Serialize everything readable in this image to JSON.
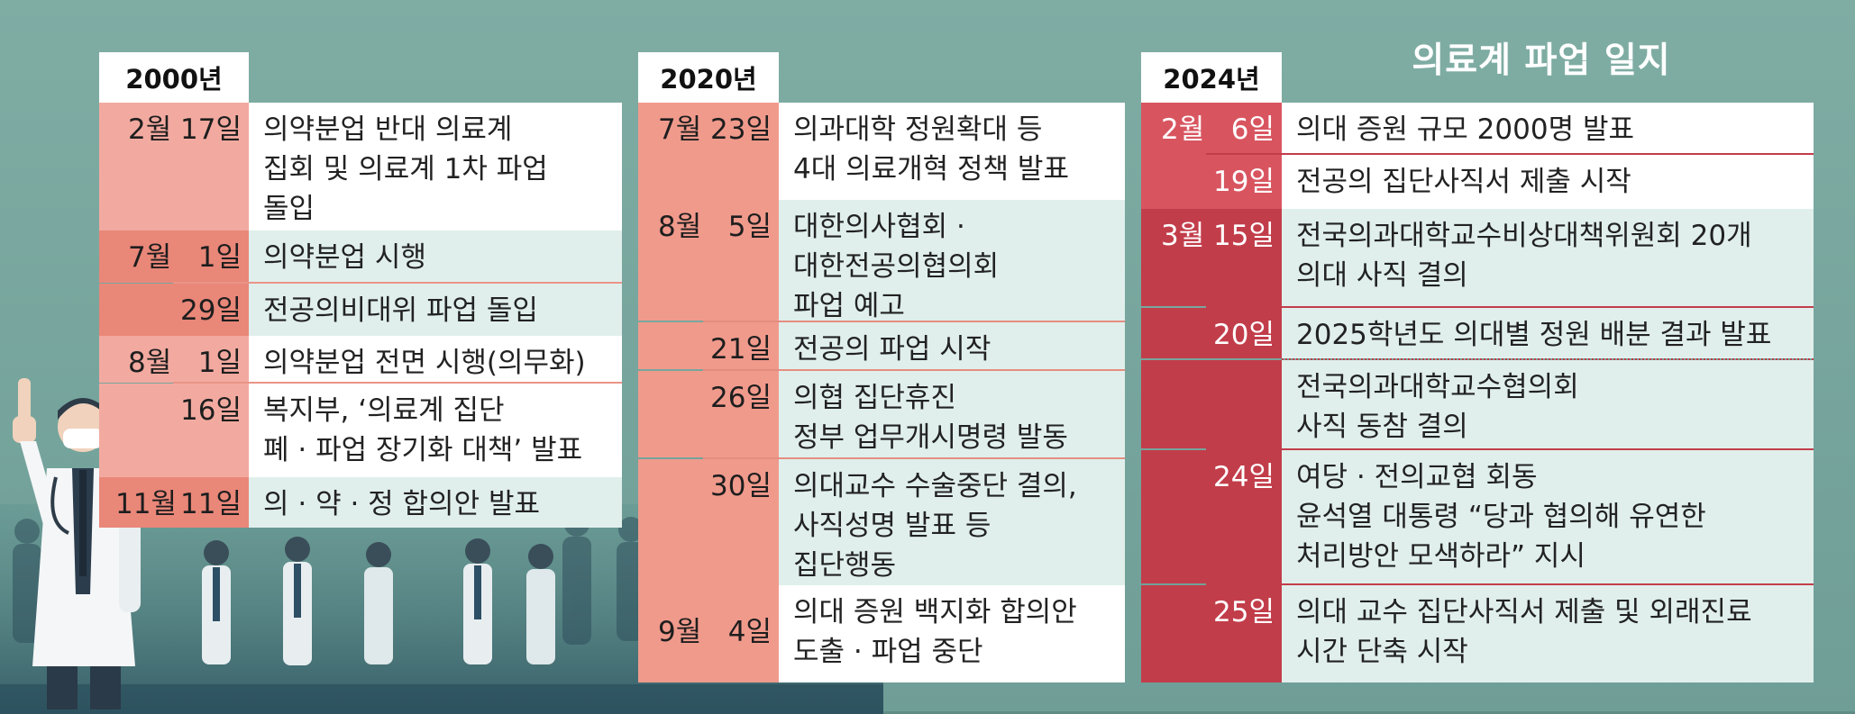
{
  "title": "의료계 파업 일지",
  "colors": {
    "background": "#86b1a8",
    "col1_date": "#f2aaa0",
    "col1_date_dark": "#e98779",
    "col2_date": "#f09a8c",
    "col3_date": "#c23d4a",
    "col3_date_light": "#d85560",
    "event_white": "#ffffff",
    "event_tint": "#e0efec"
  },
  "columns": [
    {
      "year": "2000년",
      "entries": [
        {
          "month": "2월",
          "day": "17일",
          "text": "의약분업 반대 의료계\n집회 및 의료계 1차 파업\n돌입"
        },
        {
          "month": "7월",
          "day": "1일",
          "text": "의약분업 시행"
        },
        {
          "month": "",
          "day": "29일",
          "text": "전공의비대위 파업 돌입"
        },
        {
          "month": "8월",
          "day": "1일",
          "text": "의약분업 전면 시행(의무화)"
        },
        {
          "month": "",
          "day": "16일",
          "text": "복지부, ‘의료계 집단\n폐 · 파업 장기화 대책’ 발표"
        },
        {
          "month": "11월",
          "day": "11일",
          "text": "의 · 약 · 정 합의안 발표"
        }
      ]
    },
    {
      "year": "2020년",
      "entries": [
        {
          "month": "7월",
          "day": "23일",
          "text": "의과대학 정원확대 등\n4대 의료개혁 정책 발표"
        },
        {
          "month": "8월",
          "day": "5일",
          "text": "대한의사협회 ·\n대한전공의협의회\n파업 예고"
        },
        {
          "month": "",
          "day": "21일",
          "text": "전공의 파업 시작"
        },
        {
          "month": "",
          "day": "26일",
          "text": "의협 집단휴진\n정부 업무개시명령 발동"
        },
        {
          "month": "",
          "day": "30일",
          "text": "의대교수 수술중단 결의,\n사직성명 발표 등\n집단행동"
        },
        {
          "month": "9월",
          "day": "4일",
          "text": "의대 증원 백지화 합의안\n도출 · 파업 중단"
        }
      ]
    },
    {
      "year": "2024년",
      "entries": [
        {
          "month": "2월",
          "day": "6일",
          "text": "의대 증원 규모 2000명 발표"
        },
        {
          "month": "",
          "day": "19일",
          "text": "전공의 집단사직서 제출 시작"
        },
        {
          "month": "3월",
          "day": "15일",
          "text": "전국의과대학교수비상대책위원회 20개\n의대 사직 결의"
        },
        {
          "month": "",
          "day": "20일",
          "text": "2025학년도 의대별 정원 배분 결과 발표"
        },
        {
          "month": "",
          "day": "",
          "text": "전국의과대학교수협의회\n사직 동참 결의"
        },
        {
          "month": "",
          "day": "24일",
          "text": "여당 · 전의교협 회동\n윤석열 대통령 “당과 협의해 유연한\n처리방안 모색하라” 지시"
        },
        {
          "month": "",
          "day": "25일",
          "text": "의대 교수 집단사직서 제출 및 외래진료\n시간 단축 시작"
        }
      ]
    }
  ]
}
